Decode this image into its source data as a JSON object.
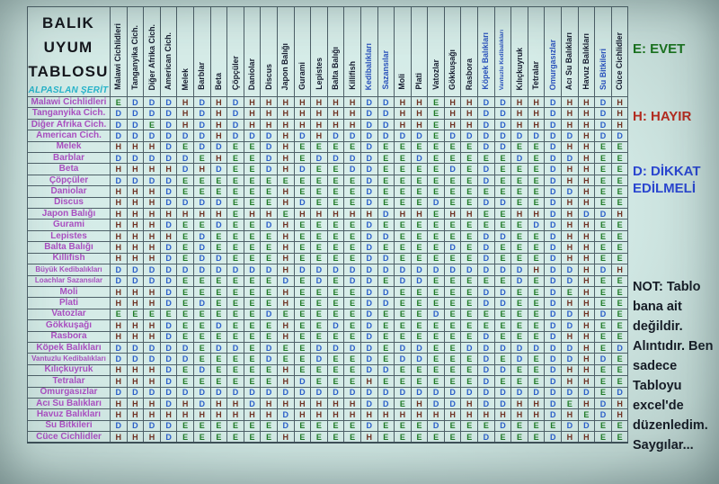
{
  "title": {
    "lines": [
      "BALIK",
      "UYUM",
      "TABLOSU"
    ],
    "author": "ALPASLAN ŞERİT",
    "author_color": "#27b3c9"
  },
  "legend": {
    "evet": {
      "text": "E: EVET",
      "color": "#1a711f"
    },
    "hayir": {
      "text": "H: HAYIR",
      "color": "#b22c20"
    },
    "dikkat": {
      "text": "D: DİKKAT EDİLMELİ",
      "color": "#2a46cf"
    }
  },
  "note": {
    "text": "NOT: Tablo bana ait değildir. Alıntıdır. Ben sadece Tabloyu excel'de düzenledim. Saygılar..."
  },
  "chart_data": {
    "type": "table",
    "title": "BALIK UYUM TABLOSU",
    "value_meanings": {
      "E": "EVET",
      "H": "HAYIR",
      "D": "DİKKAT EDİLMELİ"
    },
    "value_colors": {
      "E": "#1e7a26",
      "H": "#6f3223",
      "D": "#2a5ec8"
    },
    "header_colors": {
      "dark": "#171d30",
      "blue": "#2a52bb"
    },
    "row_label_color": "#a94fc0",
    "columns": [
      {
        "label": "Malawi Cichlidleri",
        "hue": "dark"
      },
      {
        "label": "Tanganyika Cich.",
        "hue": "dark"
      },
      {
        "label": "Diğer Afrika Cich.",
        "hue": "dark"
      },
      {
        "label": "American Cich.",
        "hue": "dark"
      },
      {
        "label": "Melek",
        "hue": "dark"
      },
      {
        "label": "Barblar",
        "hue": "dark"
      },
      {
        "label": "Beta",
        "hue": "dark"
      },
      {
        "label": "Çöpçüler",
        "hue": "dark"
      },
      {
        "label": "Daniolar",
        "hue": "dark"
      },
      {
        "label": "Discus",
        "hue": "dark"
      },
      {
        "label": "Japon Balığı",
        "hue": "dark"
      },
      {
        "label": "Gurami",
        "hue": "dark"
      },
      {
        "label": "Lepistes",
        "hue": "dark"
      },
      {
        "label": "Balta Balığı",
        "hue": "dark"
      },
      {
        "label": "Killifish",
        "hue": "dark"
      },
      {
        "label": "Kedibalıkları",
        "hue": "blue"
      },
      {
        "label": "Sazansılar",
        "hue": "blue"
      },
      {
        "label": "Moli",
        "hue": "dark"
      },
      {
        "label": "Plati",
        "hue": "dark"
      },
      {
        "label": "Vatozlar",
        "hue": "dark"
      },
      {
        "label": "Gökkuşağı",
        "hue": "dark"
      },
      {
        "label": "Rasbora",
        "hue": "dark"
      },
      {
        "label": "Köpek Balıkları",
        "hue": "blue"
      },
      {
        "label": "Vantuzlu Kedibalıkları",
        "hue": "blue"
      },
      {
        "label": "Kılıçkuyruk",
        "hue": "dark"
      },
      {
        "label": "Tetralar",
        "hue": "dark"
      },
      {
        "label": "Omurgasızlar",
        "hue": "blue"
      },
      {
        "label": "Acı Su Balıkları",
        "hue": "dark"
      },
      {
        "label": "Havuz Balıkları",
        "hue": "dark"
      },
      {
        "label": "Su Bitkileri",
        "hue": "blue"
      },
      {
        "label": "Cüce Cichlidler",
        "hue": "dark"
      }
    ],
    "rows": [
      {
        "label": "Malawi Cichlidleri",
        "values": "EDDDHDHDHHHHHHHDDHHEHHDDHHDHHDH"
      },
      {
        "label": "Tanganyika Cich.",
        "values": "DDDDHDHDHHHHHHHDDHHEHHDDHHDHHDH"
      },
      {
        "label": "Diğer Afrika Cich.",
        "values": "DDEDHDHDHHHHHHHDDHHEHHDDHHDHHDH"
      },
      {
        "label": "American Cich.",
        "values": "DDDDDDHDDDHDHDDDDDDEDDDDDDDDHDD"
      },
      {
        "label": "Melek",
        "values": "HHHDEDDEEDHEEEEDEEEEEEDDEEDHHEE"
      },
      {
        "label": "Barblar",
        "values": "DDDDDEHEEDHEDDDDEEDEEEEEDEDDHEE"
      },
      {
        "label": "Beta",
        "values": "HHHHDHDEEDHDEEDDEEEEDEDEEEDHHEE"
      },
      {
        "label": "Çöpçüler",
        "values": "DDDDEEEEEEEEEEEDEEEEEEDEEEDHHEE"
      },
      {
        "label": "Daniolar",
        "values": "HHHDEEEEEEHEEEEDEEEEEEEEEEDDHEE"
      },
      {
        "label": "Discus",
        "values": "HHHDDDDEEEHDEEEDEEEDEEDDEEDHHEE"
      },
      {
        "label": "Japon Balığı",
        "values": "HHHHHHHEHHEHHHHHDHHEHHEEHHDHDDH"
      },
      {
        "label": "Gurami",
        "values": "HHHDEEDEEDHEEEEDEEEEEEEEEDDHHEE"
      },
      {
        "label": "Lepistes",
        "values": "HHHHEDEEEEHEEEEDDEEEEEDDEEDHHEE"
      },
      {
        "label": "Balta Balığı",
        "values": "HHHDEDEEEEHEEEEDEEEEDEDEEEDHHEE"
      },
      {
        "label": "Killifish",
        "values": "HHHDEDDEEEHEEEEDDEEEEEDEEEDHHEE"
      },
      {
        "label": "Büyük Kedibalıkları",
        "values": "DDDDDDDDDDHDDDDDDDDDDDDDDHDDHDH"
      },
      {
        "label": "Loachlar Sazansılar",
        "values": "DDDDEEEEEEDEDEDDEDDEEEEEDEDDHEE"
      },
      {
        "label": "Moli",
        "values": "HHHDEEEEEEHEEEEDDEEEEEDDEEDEHEE"
      },
      {
        "label": "Plati",
        "values": "HHHDEDEEEEHEEEEDDEEEEEDDEEDHHEE"
      },
      {
        "label": "Vatozlar",
        "values": "EEEEEEEEEDEEEEEDEEEDEEEEEEDDHDE"
      },
      {
        "label": "Gökkuşağı",
        "values": "HHHDEEDEEEHEEDEDEEEEEEEEEEDDHEE"
      },
      {
        "label": "Rasbora",
        "values": "HHHDEEEEEEHEEEEDEEEEEEDEEEDHHEE"
      },
      {
        "label": "Köpek Balıkları",
        "values": "DDDDDEDDEDEEDDDDEDDEEDDDDDDDHED"
      },
      {
        "label": "Vantuzlu Kedibalıkları",
        "values": "DDDDDEEEEDEEDEEDEDDEEEDEDEDDHDE"
      },
      {
        "label": "Kılıçkuyruk",
        "values": "HHHDEDEEEEHEEEEDDEEEEEDDEEDHHEE"
      },
      {
        "label": "Tetralar",
        "values": "HHHDEEEEEEHDEEEHEEEEEEDEEEDHHEE"
      },
      {
        "label": "Omurgasızlar",
        "values": "DDDDDDDDDDDDDDDDDDDDDDDDDDDDDED"
      },
      {
        "label": "Acı Su Balıkları",
        "values": "HHHDHDHHDHHHHHHDDEHDDHDDHHDEHDH"
      },
      {
        "label": "Havuz Balıkları",
        "values": "HHHHHHHHHHDHHHHHHHHHHHHHHHDHEDH"
      },
      {
        "label": "Su Bitkileri",
        "values": "DDDDEEEEEEDEEEEDEEEDEEEDEEEDDEE"
      },
      {
        "label": "Cüce Cichlidler",
        "values": "HHHDEEEEEEHEEEEHEEEEEEDEEEDHHEE"
      }
    ]
  }
}
